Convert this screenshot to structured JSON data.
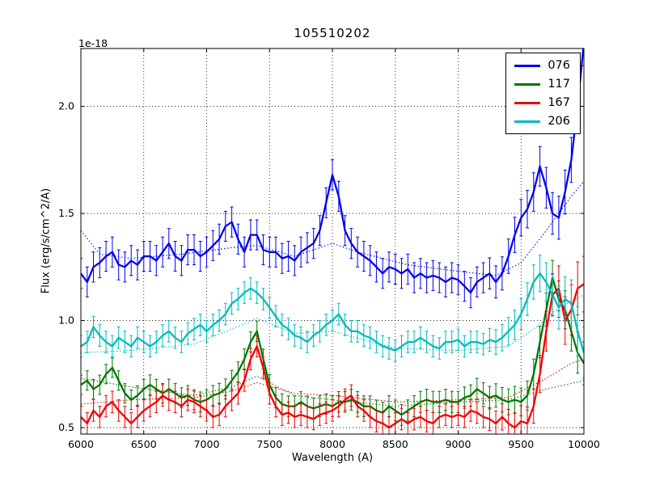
{
  "figure": {
    "title": "105510202",
    "offset_label": "1e-18",
    "xlabel": "Wavelength (A)",
    "ylabel": "Flux (erg/s/cm^2/A)",
    "background": "#ffffff",
    "grid_color": "#000000",
    "frame_color": "#000000"
  },
  "legend": {
    "entries": [
      {
        "label": "076",
        "color": "#0000ee"
      },
      {
        "label": "117",
        "color": "#007700"
      },
      {
        "label": "167",
        "color": "#ee0000"
      },
      {
        "label": "206",
        "color": "#00bcbc"
      }
    ]
  },
  "chart_data": {
    "type": "line",
    "title": "105510202",
    "xlabel": "Wavelength (A)",
    "ylabel": "Flux (erg/s/cm^2/A)",
    "y_offset_factor": "1e-18",
    "xlim": [
      6000,
      10000
    ],
    "ylim": [
      0.47,
      2.27
    ],
    "xticks": [
      6000,
      6500,
      7000,
      7500,
      8000,
      8500,
      9000,
      9500,
      10000
    ],
    "yticks": [
      0.5,
      1.0,
      1.5,
      2.0
    ],
    "grid": true,
    "legend_position": "upper right",
    "x_start": 6000,
    "x_step": 50,
    "series": [
      {
        "name": "076",
        "color": "#0000ee",
        "values": [
          1.22,
          1.18,
          1.25,
          1.27,
          1.3,
          1.32,
          1.26,
          1.25,
          1.28,
          1.26,
          1.3,
          1.3,
          1.28,
          1.32,
          1.36,
          1.3,
          1.28,
          1.33,
          1.33,
          1.3,
          1.32,
          1.35,
          1.38,
          1.44,
          1.46,
          1.38,
          1.32,
          1.4,
          1.4,
          1.33,
          1.32,
          1.32,
          1.29,
          1.3,
          1.28,
          1.32,
          1.34,
          1.36,
          1.42,
          1.55,
          1.68,
          1.58,
          1.42,
          1.36,
          1.32,
          1.3,
          1.28,
          1.25,
          1.22,
          1.25,
          1.24,
          1.22,
          1.24,
          1.2,
          1.22,
          1.2,
          1.21,
          1.2,
          1.18,
          1.2,
          1.19,
          1.16,
          1.13,
          1.18,
          1.2,
          1.22,
          1.18,
          1.22,
          1.3,
          1.4,
          1.48,
          1.52,
          1.6,
          1.72,
          1.62,
          1.5,
          1.48,
          1.6,
          1.75,
          2.0,
          2.3
        ],
        "error_profile": [
          [
            6000,
            0.07
          ],
          [
            9200,
            0.07
          ],
          [
            9600,
            0.09
          ],
          [
            10000,
            0.11
          ]
        ],
        "template_dotted": [
          [
            6000,
            1.42
          ],
          [
            6150,
            1.31
          ],
          [
            6400,
            1.29
          ],
          [
            6800,
            1.31
          ],
          [
            7200,
            1.34
          ],
          [
            7400,
            1.35
          ],
          [
            7700,
            1.3
          ],
          [
            8000,
            1.36
          ],
          [
            8200,
            1.32
          ],
          [
            8600,
            1.26
          ],
          [
            9000,
            1.23
          ],
          [
            9300,
            1.21
          ],
          [
            9500,
            1.27
          ],
          [
            9700,
            1.42
          ],
          [
            9900,
            1.58
          ],
          [
            10000,
            1.65
          ]
        ]
      },
      {
        "name": "117",
        "color": "#007700",
        "values": [
          0.7,
          0.72,
          0.68,
          0.7,
          0.75,
          0.78,
          0.72,
          0.66,
          0.63,
          0.65,
          0.68,
          0.7,
          0.68,
          0.66,
          0.68,
          0.66,
          0.64,
          0.65,
          0.63,
          0.62,
          0.63,
          0.65,
          0.66,
          0.68,
          0.72,
          0.76,
          0.82,
          0.9,
          0.95,
          0.82,
          0.7,
          0.64,
          0.61,
          0.6,
          0.6,
          0.62,
          0.6,
          0.59,
          0.6,
          0.61,
          0.6,
          0.62,
          0.62,
          0.63,
          0.62,
          0.6,
          0.6,
          0.58,
          0.57,
          0.6,
          0.58,
          0.56,
          0.58,
          0.6,
          0.62,
          0.63,
          0.62,
          0.62,
          0.63,
          0.62,
          0.62,
          0.64,
          0.65,
          0.68,
          0.66,
          0.64,
          0.65,
          0.63,
          0.62,
          0.63,
          0.62,
          0.65,
          0.75,
          0.9,
          1.05,
          1.2,
          1.1,
          1.05,
          0.95,
          0.85,
          0.8
        ],
        "error_profile": [
          [
            6000,
            0.045
          ],
          [
            9200,
            0.05
          ],
          [
            9600,
            0.07
          ],
          [
            10000,
            0.1
          ]
        ],
        "template_dotted": [
          [
            6000,
            0.73
          ],
          [
            6400,
            0.69
          ],
          [
            6900,
            0.65
          ],
          [
            7200,
            0.69
          ],
          [
            7400,
            0.74
          ],
          [
            7700,
            0.65
          ],
          [
            8000,
            0.63
          ],
          [
            8500,
            0.6
          ],
          [
            9000,
            0.62
          ],
          [
            9400,
            0.63
          ],
          [
            9700,
            0.68
          ],
          [
            10000,
            0.72
          ]
        ]
      },
      {
        "name": "167",
        "color": "#ee0000",
        "values": [
          0.55,
          0.52,
          0.58,
          0.55,
          0.6,
          0.62,
          0.58,
          0.55,
          0.52,
          0.55,
          0.58,
          0.6,
          0.62,
          0.65,
          0.63,
          0.62,
          0.6,
          0.63,
          0.62,
          0.6,
          0.58,
          0.55,
          0.56,
          0.6,
          0.63,
          0.66,
          0.72,
          0.82,
          0.88,
          0.78,
          0.66,
          0.6,
          0.56,
          0.57,
          0.55,
          0.56,
          0.55,
          0.54,
          0.56,
          0.57,
          0.58,
          0.6,
          0.63,
          0.65,
          0.6,
          0.58,
          0.55,
          0.53,
          0.52,
          0.5,
          0.52,
          0.54,
          0.52,
          0.54,
          0.55,
          0.53,
          0.52,
          0.55,
          0.56,
          0.55,
          0.56,
          0.55,
          0.58,
          0.57,
          0.55,
          0.54,
          0.52,
          0.55,
          0.52,
          0.5,
          0.53,
          0.52,
          0.6,
          0.75,
          0.95,
          1.12,
          1.15,
          1.0,
          1.05,
          1.15,
          1.17
        ],
        "error_profile": [
          [
            6000,
            0.05
          ],
          [
            9200,
            0.05
          ],
          [
            9600,
            0.08
          ],
          [
            10000,
            0.13
          ]
        ],
        "template_dotted": [
          [
            6000,
            0.61
          ],
          [
            6400,
            0.63
          ],
          [
            6900,
            0.64
          ],
          [
            7200,
            0.67
          ],
          [
            7400,
            0.71
          ],
          [
            7700,
            0.66
          ],
          [
            8000,
            0.65
          ],
          [
            8500,
            0.62
          ],
          [
            9000,
            0.63
          ],
          [
            9400,
            0.64
          ],
          [
            9700,
            0.73
          ],
          [
            9900,
            0.8
          ],
          [
            10000,
            0.82
          ]
        ]
      },
      {
        "name": "206",
        "color": "#00bcbc",
        "values": [
          0.88,
          0.9,
          0.97,
          0.93,
          0.9,
          0.88,
          0.92,
          0.9,
          0.88,
          0.92,
          0.9,
          0.88,
          0.9,
          0.93,
          0.95,
          0.92,
          0.9,
          0.94,
          0.96,
          0.98,
          0.95,
          0.98,
          1.0,
          1.03,
          1.08,
          1.1,
          1.13,
          1.15,
          1.13,
          1.1,
          1.06,
          1.02,
          0.98,
          0.96,
          0.93,
          0.92,
          0.9,
          0.93,
          0.95,
          0.98,
          1.0,
          1.03,
          0.98,
          0.95,
          0.95,
          0.93,
          0.92,
          0.9,
          0.88,
          0.87,
          0.86,
          0.88,
          0.9,
          0.9,
          0.92,
          0.9,
          0.88,
          0.87,
          0.9,
          0.9,
          0.91,
          0.88,
          0.9,
          0.9,
          0.89,
          0.91,
          0.9,
          0.92,
          0.95,
          0.98,
          1.03,
          1.1,
          1.18,
          1.22,
          1.18,
          1.12,
          1.06,
          1.1,
          1.08,
          0.95,
          0.85
        ],
        "error_profile": [
          [
            6000,
            0.05
          ],
          [
            9200,
            0.05
          ],
          [
            9600,
            0.08
          ],
          [
            10000,
            0.12
          ]
        ],
        "template_dotted": [
          [
            6000,
            0.85
          ],
          [
            6400,
            0.86
          ],
          [
            6900,
            0.89
          ],
          [
            7200,
            0.96
          ],
          [
            7400,
            1.01
          ],
          [
            7700,
            0.94
          ],
          [
            8000,
            0.95
          ],
          [
            8500,
            0.87
          ],
          [
            9000,
            0.86
          ],
          [
            9400,
            0.88
          ],
          [
            9600,
            0.96
          ],
          [
            9800,
            1.06
          ],
          [
            10000,
            1.12
          ]
        ]
      }
    ]
  }
}
